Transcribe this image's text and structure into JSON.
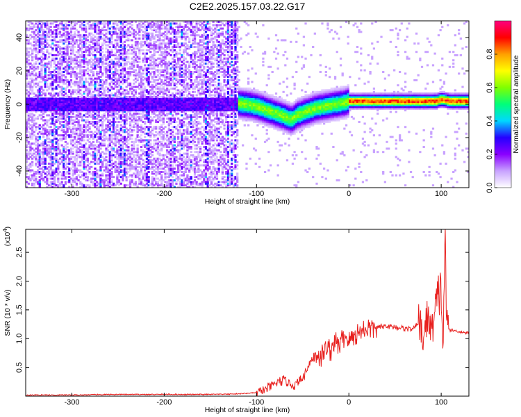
{
  "title": "C2E2.2025.157.03.22.G17",
  "chart_data": [
    {
      "type": "heatmap",
      "xlabel": "Height of straight line (km)",
      "ylabel": "Frequency (Hz)",
      "xlim": [
        -350,
        130
      ],
      "ylim": [
        -50,
        50
      ],
      "xticks": [
        -300,
        -200,
        -100,
        0,
        100
      ],
      "yticks": [
        -40,
        -20,
        0,
        20,
        40
      ],
      "colorbar": {
        "label": "Normalized spectral amplitude",
        "range": [
          0,
          1
        ],
        "ticks": [
          "0.0",
          "0.2",
          "0.4",
          "0.6",
          "0.8"
        ],
        "tick_values": [
          0.0,
          0.2,
          0.4,
          0.6,
          0.8
        ],
        "colors": [
          "#ffffff",
          "#c8a2ff",
          "#8a00ff",
          "#2500ff",
          "#00d8ff",
          "#00ff7a",
          "#80ff00",
          "#ffff00",
          "#ffa000",
          "#ff0000",
          "#ff007f"
        ]
      },
      "ridge": {
        "x": [
          -125,
          -110,
          -100,
          -90,
          -80,
          -70,
          -62,
          -55,
          -45,
          -35,
          -25,
          -15,
          -5,
          0,
          20,
          40,
          60,
          80,
          95,
          100,
          110,
          130
        ],
        "frequency": [
          1,
          0,
          -1,
          -3,
          -5,
          -7,
          -9,
          -6,
          -4,
          -2,
          -1,
          0,
          1,
          2,
          2,
          2,
          2,
          2,
          2,
          3,
          2,
          2
        ]
      },
      "noise_band_x": [
        -350,
        -120
      ],
      "grid": false
    },
    {
      "type": "line",
      "xlabel": "Height of straight line (km)",
      "ylabel": "SNR (10 * v/v)",
      "scale_label": "(x10",
      "scale_exponent": "4",
      "xlim": [
        -350,
        130
      ],
      "ylim": [
        0,
        2.9
      ],
      "xticks": [
        -300,
        -200,
        -100,
        0,
        100
      ],
      "yticks": [
        0.5,
        1.0,
        1.5,
        2.0,
        2.5
      ],
      "ytick_labels": [
        "0.5",
        "1.0",
        "1.5",
        "2.0",
        "2.5"
      ],
      "color": "#e8201e",
      "series": [
        {
          "x": [
            -350,
            -300,
            -250,
            -200,
            -150,
            -120,
            -100,
            -90,
            -80,
            -70,
            -60,
            -50,
            -45,
            -40,
            -35,
            -30,
            -25,
            -20,
            -15,
            -10,
            -5,
            0,
            10,
            20,
            30,
            40,
            50,
            60,
            70,
            75,
            80,
            85,
            90,
            95,
            100,
            102,
            104,
            106,
            110,
            120,
            130
          ],
          "values": [
            0.02,
            0.02,
            0.03,
            0.03,
            0.03,
            0.04,
            0.06,
            0.12,
            0.22,
            0.28,
            0.18,
            0.3,
            0.5,
            0.65,
            0.75,
            0.68,
            0.85,
            0.8,
            0.95,
            0.9,
            1.05,
            1.0,
            1.1,
            1.18,
            1.2,
            1.22,
            1.2,
            1.18,
            1.16,
            1.3,
            0.95,
            1.45,
            1.1,
            1.6,
            1.9,
            0.7,
            2.9,
            1.2,
            1.15,
            1.12,
            1.1
          ]
        }
      ],
      "grid": false
    }
  ]
}
